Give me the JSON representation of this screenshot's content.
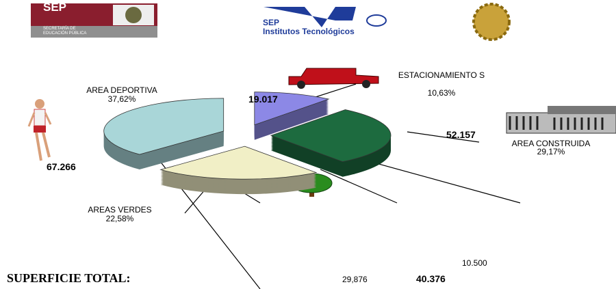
{
  "header": {
    "sep_logo": "SEP",
    "sep_line1": "SECRETARÍA DE",
    "sep_line2": "EDUCACIÓN PÚBLICA",
    "tec_sep": "SEP",
    "tec_name": "Institutos Tecnológicos"
  },
  "chart_data": {
    "type": "pie",
    "categories": [
      "AREA DEPORTIVA",
      "ESTACIONAMIENTO S",
      "AREA CONSTRUIDA",
      "AREAS VERDES"
    ],
    "values": [
      37.62,
      10.63,
      29.17,
      22.58
    ],
    "value_labels": [
      "37,62%",
      "10,63%",
      "29,17%",
      "22,58%"
    ],
    "colors": [
      "#a9d6d8",
      "#8c88e6",
      "#1d6b3f",
      "#f1efc6"
    ],
    "annotations": [
      "67.266",
      "19.017",
      "52.157",
      "10.500",
      "29,876",
      "40.376"
    ],
    "total_label": "SUPERFICIE TOTAL:"
  }
}
